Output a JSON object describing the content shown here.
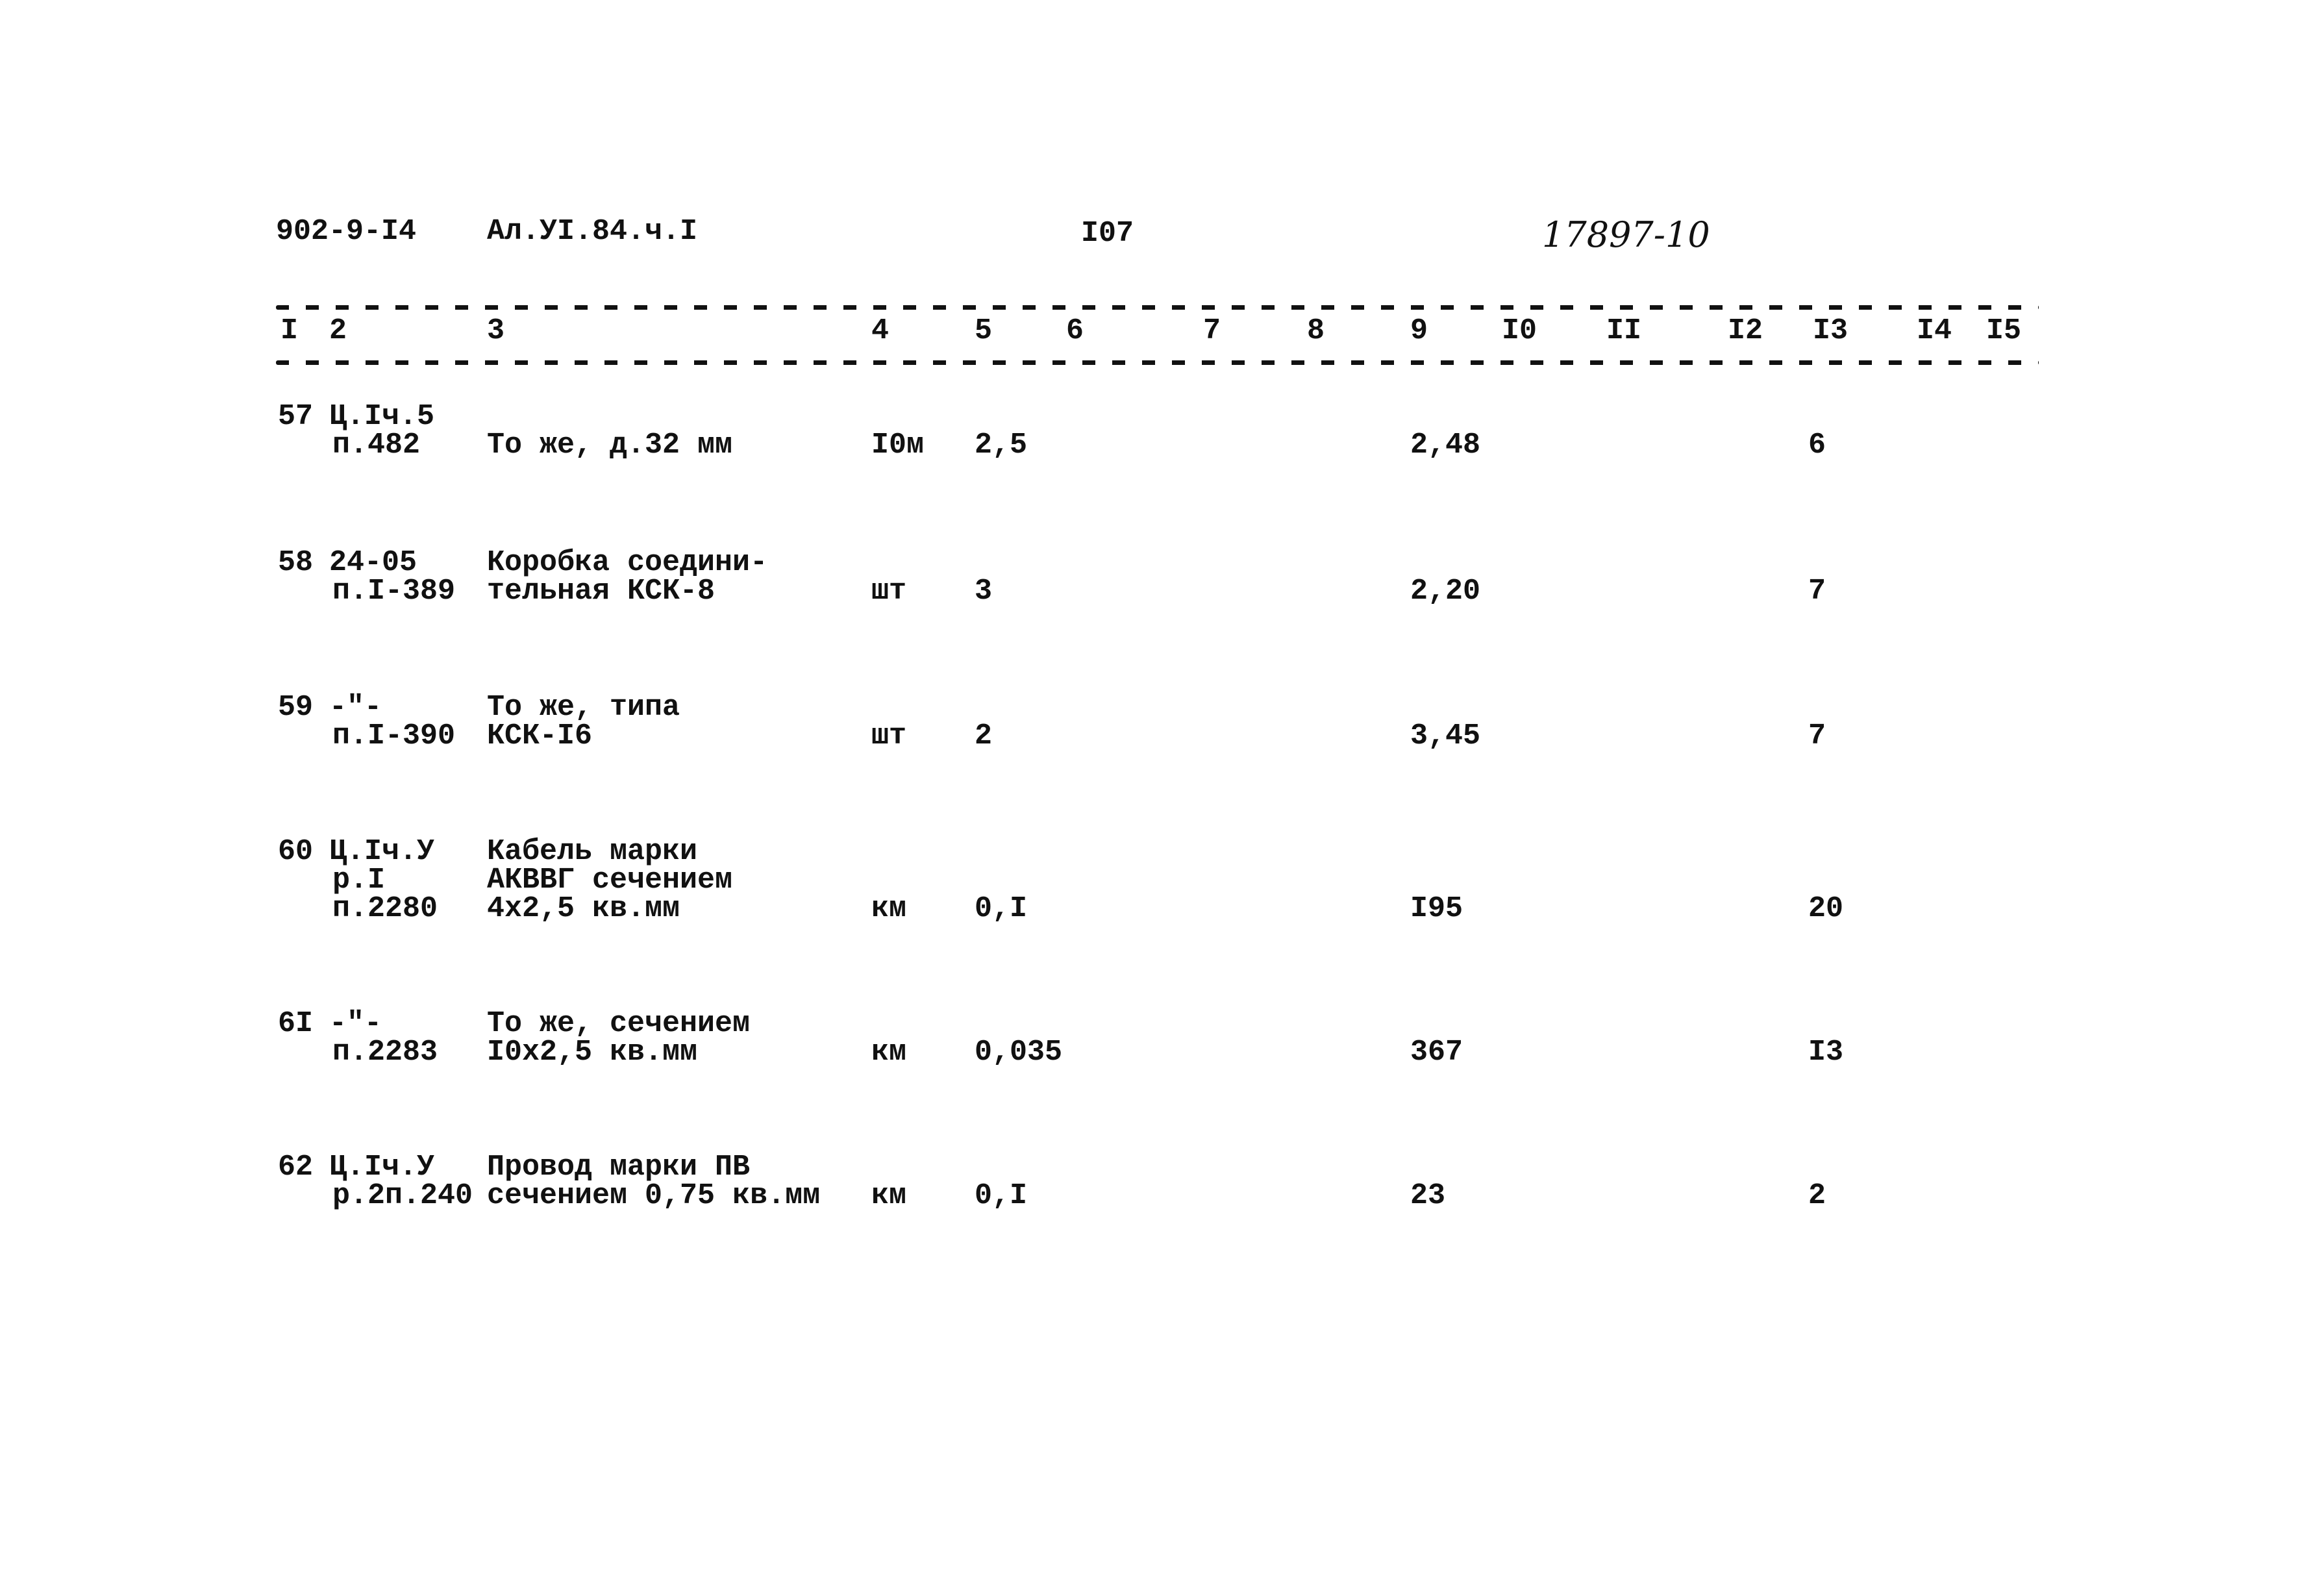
{
  "header": {
    "project_code": "902-9-I4",
    "album": "Ал.УI.84.ч.I",
    "page_number": "I07",
    "handwritten_number": "17897-10"
  },
  "column_numbers": [
    "I",
    "2",
    "3",
    "4",
    "5",
    "6",
    "7",
    "8",
    "9",
    "I0",
    "II",
    "I2",
    "I3",
    "I4",
    "I5"
  ],
  "rows": [
    {
      "no": "57",
      "ref": [
        "Ц.Iч.5",
        "п.482"
      ],
      "name": [
        "То же, д.32 мм"
      ],
      "unit": "I0м",
      "qty": "2,5",
      "price": "2,48",
      "col13": "6"
    },
    {
      "no": "58",
      "ref": [
        "24-05",
        "п.I-389"
      ],
      "name": [
        "Коробка соедини-",
        "тельная КСК-8"
      ],
      "unit": "шт",
      "qty": "3",
      "price": "2,20",
      "col13": "7"
    },
    {
      "no": "59",
      "ref": [
        "-\"-",
        "п.I-390"
      ],
      "name": [
        "То же, типа",
        "КСК-I6"
      ],
      "unit": "шт",
      "qty": "2",
      "price": "3,45",
      "col13": "7"
    },
    {
      "no": "60",
      "ref": [
        "Ц.Iч.У",
        "р.I",
        "п.2280"
      ],
      "name": [
        "Кабель марки",
        "АКВВГ сечением",
        "4х2,5 кв.мм"
      ],
      "unit": "км",
      "qty": "0,I",
      "price": "I95",
      "col13": "20"
    },
    {
      "no": "6I",
      "ref": [
        "-\"-",
        "п.2283"
      ],
      "name": [
        "То же, сечением",
        "I0х2,5 кв.мм"
      ],
      "unit": "км",
      "qty": "0,035",
      "price": "367",
      "col13": "I3"
    },
    {
      "no": "62",
      "ref": [
        "Ц.Iч.У",
        "р.2п.240"
      ],
      "name": [
        "Провод марки ПВ",
        "сечением 0,75 кв.мм"
      ],
      "unit": "км",
      "qty": "0,I",
      "price": "23",
      "col13": "2"
    }
  ]
}
